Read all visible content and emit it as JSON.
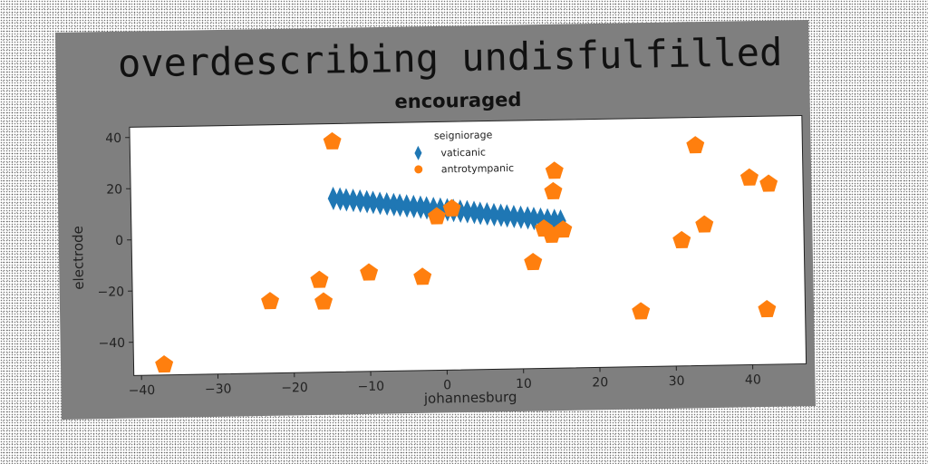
{
  "chart_data": {
    "type": "scatter",
    "suptitle": "overdescribing undisfulfilled",
    "title": "encouraged",
    "xlabel": "johannesburg",
    "ylabel": "electrode",
    "xlim": [
      -41,
      47
    ],
    "ylim": [
      -53,
      44
    ],
    "xticks": [
      -40,
      -30,
      -20,
      -10,
      0,
      10,
      20,
      30,
      40
    ],
    "yticks": [
      40,
      20,
      0,
      -20,
      -40
    ],
    "grid": false,
    "legend": {
      "title": "seigniorage",
      "placement": "top-center",
      "entries": [
        "vaticanic",
        "antrotympanic"
      ]
    },
    "series": [
      {
        "name": "vaticanic",
        "marker": "thin-diamond",
        "color": "#1f77b4",
        "x": [
          -14.5,
          -13.6,
          -12.8,
          -11.9,
          -11.0,
          -10.1,
          -9.3,
          -8.4,
          -7.5,
          -6.6,
          -5.8,
          -4.9,
          -4.0,
          -3.1,
          -2.3,
          -1.4,
          -0.5,
          0.4,
          1.2,
          2.1,
          3.0,
          3.9,
          4.7,
          5.6,
          6.5,
          7.4,
          8.2,
          9.1,
          10.0,
          10.9,
          11.7,
          12.6,
          13.5,
          14.4,
          15.2
        ],
        "y": [
          14.8,
          14.5,
          14.2,
          13.9,
          13.6,
          13.3,
          13.0,
          12.6,
          12.3,
          12.0,
          11.7,
          11.4,
          11.1,
          10.8,
          10.5,
          10.2,
          9.9,
          9.6,
          9.3,
          9.0,
          8.7,
          8.4,
          8.0,
          7.7,
          7.4,
          7.1,
          6.8,
          6.5,
          6.2,
          5.9,
          5.6,
          5.3,
          5.0,
          4.7,
          4.4
        ]
      },
      {
        "name": "antrotympanic",
        "marker": "pentagon",
        "color": "#ff7f0e",
        "x": [
          -37,
          -14.5,
          -23,
          -16.5,
          -16,
          -10,
          -3,
          -1,
          1,
          11.5,
          13,
          14,
          14.3,
          14.5,
          15.5,
          25.5,
          31,
          33,
          34,
          40,
          42.5,
          42
        ],
        "y": [
          -49,
          37,
          -25,
          -17,
          -25.5,
          -14.5,
          -16.5,
          7,
          10,
          -11.5,
          1.5,
          -1,
          16,
          24,
          1,
          -31.5,
          -4,
          33,
          2,
          20,
          17.5,
          -31.5
        ]
      }
    ]
  }
}
